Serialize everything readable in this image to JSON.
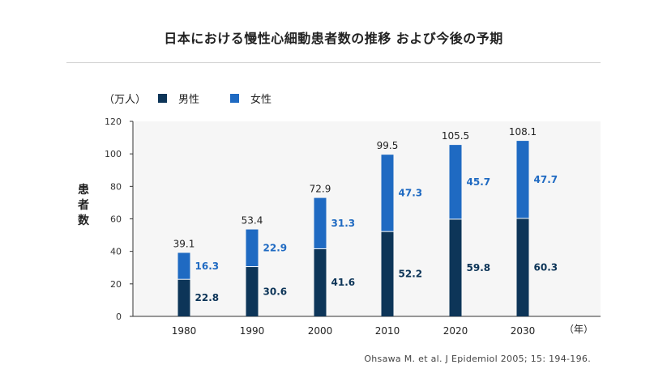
{
  "title": "日本における慢性心細動患者数の推移 および今後の予期",
  "source": "Ohsawa M. et al. J Epidemiol 2005; 15: 194-196.",
  "colors": {
    "male": "#0d3558",
    "female": "#1f6ac2",
    "plot_bg": "#f6f6f6"
  },
  "chart_data": {
    "type": "bar",
    "stacked": true,
    "title": "日本における慢性心細動患者数の推移 および今後の予期",
    "unit_label": "（万人）",
    "ylabel": "患者数",
    "xlabel": "（年）",
    "categories": [
      "1980",
      "1990",
      "2000",
      "2010",
      "2020",
      "2030"
    ],
    "series": [
      {
        "name": "男性",
        "values": [
          22.8,
          30.6,
          41.6,
          52.2,
          59.8,
          60.3
        ]
      },
      {
        "name": "女性",
        "values": [
          16.3,
          22.9,
          31.3,
          47.3,
          45.7,
          47.7
        ]
      }
    ],
    "totals": [
      "39.1",
      "53.4",
      "72.9",
      "99.5",
      "105.5",
      "108.1"
    ],
    "ylim": [
      0,
      120
    ],
    "yticks": [
      0,
      20,
      40,
      60,
      80,
      100,
      120
    ],
    "legend_position": "top-left"
  }
}
